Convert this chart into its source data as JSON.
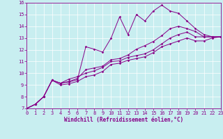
{
  "xlabel": "Windchill (Refroidissement éolien,°C)",
  "bg_color": "#c8eef0",
  "line_color": "#880088",
  "xlim": [
    0,
    23
  ],
  "ylim": [
    7,
    16
  ],
  "xticks": [
    0,
    1,
    2,
    3,
    4,
    5,
    6,
    7,
    8,
    9,
    10,
    11,
    12,
    13,
    14,
    15,
    16,
    17,
    18,
    19,
    20,
    21,
    22,
    23
  ],
  "yticks": [
    7,
    8,
    9,
    10,
    11,
    12,
    13,
    14,
    15,
    16
  ],
  "series1_x": [
    0,
    1,
    2,
    3,
    4,
    5,
    6,
    7,
    8,
    9,
    10,
    11,
    12,
    13,
    14,
    15,
    16,
    17,
    18,
    19,
    20,
    21,
    22,
    23
  ],
  "series1_y": [
    7.0,
    7.35,
    8.0,
    9.4,
    9.15,
    9.25,
    9.45,
    12.25,
    12.05,
    11.8,
    13.0,
    14.8,
    13.3,
    15.0,
    14.45,
    15.3,
    15.8,
    15.3,
    15.1,
    14.45,
    13.8,
    13.3,
    13.1,
    13.1
  ],
  "series2_x": [
    0,
    1,
    2,
    3,
    4,
    5,
    6,
    7,
    8,
    9,
    10,
    11,
    12,
    13,
    14,
    15,
    16,
    17,
    18,
    19,
    20,
    21,
    22,
    23
  ],
  "series2_y": [
    7.0,
    7.35,
    8.0,
    9.4,
    9.15,
    9.3,
    9.55,
    10.3,
    10.45,
    10.6,
    11.15,
    11.25,
    11.55,
    12.05,
    12.35,
    12.7,
    13.2,
    13.8,
    14.0,
    13.8,
    13.55,
    13.1,
    13.1,
    13.1
  ],
  "series3_x": [
    0,
    1,
    2,
    3,
    4,
    5,
    6,
    7,
    8,
    9,
    10,
    11,
    12,
    13,
    14,
    15,
    16,
    17,
    18,
    19,
    20,
    21,
    22,
    23
  ],
  "series3_y": [
    7.0,
    7.35,
    8.0,
    9.4,
    9.15,
    9.5,
    9.7,
    10.0,
    10.2,
    10.5,
    11.0,
    11.05,
    11.35,
    11.5,
    11.65,
    12.0,
    12.5,
    13.0,
    13.3,
    13.5,
    13.1,
    13.1,
    13.1,
    13.1
  ],
  "series4_x": [
    0,
    1,
    2,
    3,
    4,
    5,
    6,
    7,
    8,
    9,
    10,
    11,
    12,
    13,
    14,
    15,
    16,
    17,
    18,
    19,
    20,
    21,
    22,
    23
  ],
  "series4_y": [
    7.0,
    7.35,
    8.0,
    9.4,
    9.0,
    9.1,
    9.3,
    9.7,
    9.85,
    10.15,
    10.75,
    10.85,
    11.1,
    11.25,
    11.4,
    11.75,
    12.25,
    12.5,
    12.75,
    13.0,
    12.75,
    12.75,
    13.0,
    13.1
  ]
}
